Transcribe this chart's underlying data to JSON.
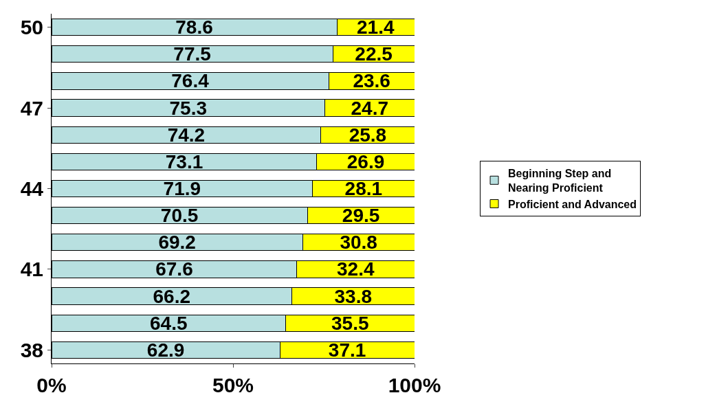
{
  "chart_data": {
    "type": "bar",
    "orientation": "horizontal",
    "stacked": true,
    "categories": [
      "50",
      null,
      null,
      "47",
      null,
      null,
      "44",
      null,
      null,
      "41",
      null,
      null,
      "38"
    ],
    "series": [
      {
        "name": "Beginning Step and Nearing Proficient",
        "color": "#b8e0e0",
        "values": [
          78.6,
          77.5,
          76.4,
          75.3,
          74.2,
          73.1,
          71.9,
          70.5,
          69.2,
          67.6,
          66.2,
          64.5,
          62.9
        ]
      },
      {
        "name": "Proficient and Advanced",
        "color": "#ffff00",
        "values": [
          21.4,
          22.5,
          23.6,
          24.7,
          25.8,
          26.9,
          28.1,
          29.5,
          30.8,
          32.4,
          33.8,
          35.5,
          37.1
        ]
      }
    ],
    "xlim": [
      0,
      100
    ],
    "xticks": [
      {
        "value": 0,
        "label": "0%"
      },
      {
        "value": 50,
        "label": "50%"
      },
      {
        "value": 100,
        "label": "100%"
      }
    ],
    "data_labels": true,
    "legend": "right"
  }
}
